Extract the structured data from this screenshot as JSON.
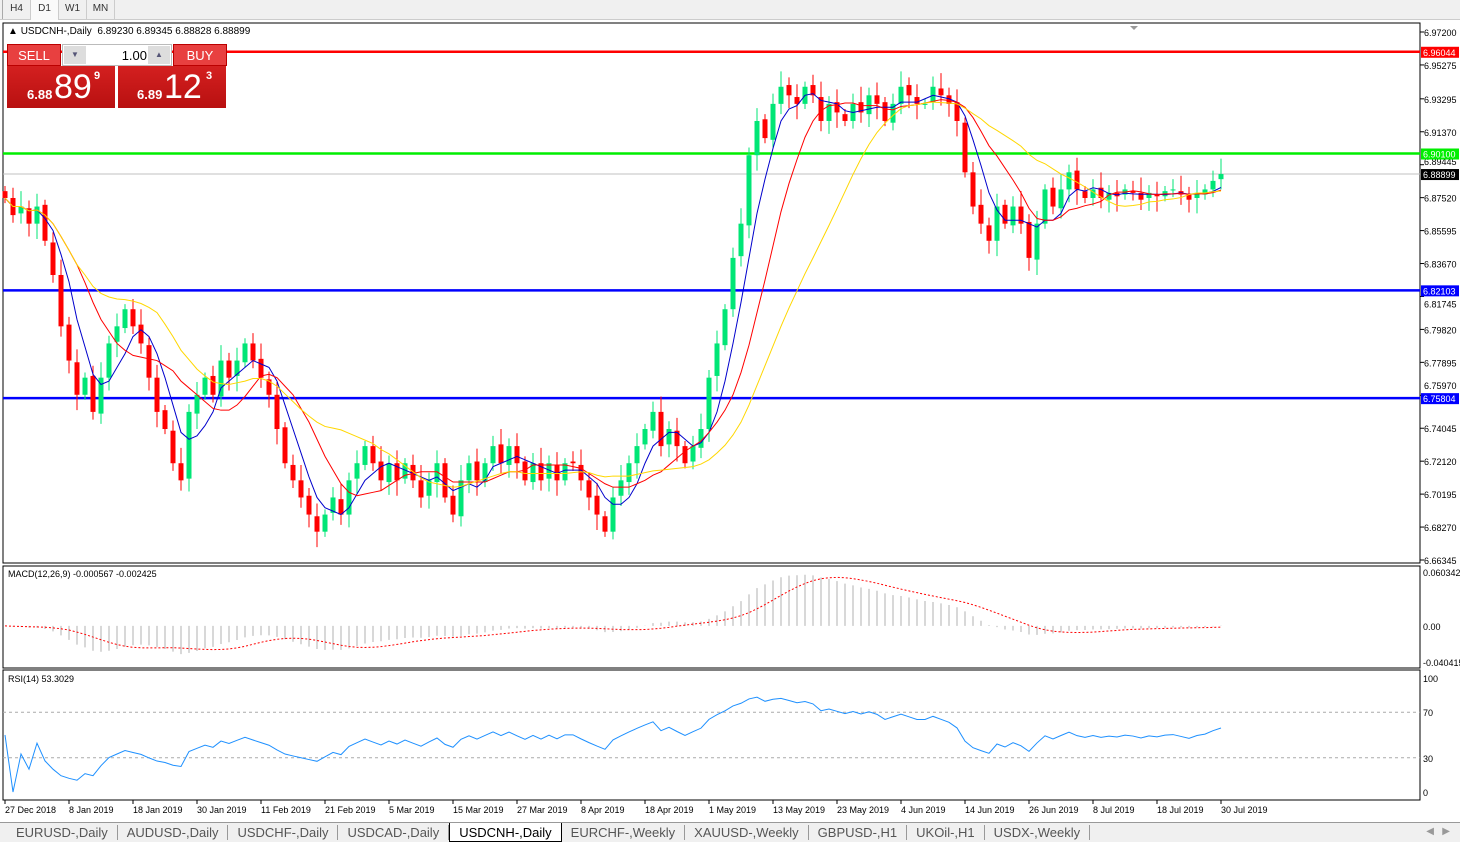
{
  "timeframes": [
    "H4",
    "D1",
    "W1",
    "MN"
  ],
  "active_timeframe": "D1",
  "header": {
    "symbol": "USDCNH-,Daily",
    "ohlc": "6.89230 6.89345 6.88828 6.88899"
  },
  "trade": {
    "sell_label": "SELL",
    "buy_label": "BUY",
    "lot": "1.00",
    "sell_prefix": "6.88",
    "sell_big": "89",
    "sell_sup": "9",
    "buy_prefix": "6.89",
    "buy_big": "12",
    "buy_sup": "3"
  },
  "colors": {
    "bull": "#00e676",
    "bear": "#ff0000",
    "ma5": "#0000cc",
    "ma10": "#ff0000",
    "ma20": "#ffd700",
    "bg": "#ffffff"
  },
  "chart_data": {
    "type": "candlestick",
    "price_ticks": [
      "6.97200",
      "6.95275",
      "6.93295",
      "6.91370",
      "6.89445",
      "6.87520",
      "6.85595",
      "6.83670",
      "6.81745",
      "6.79820",
      "6.77895",
      "6.75970",
      "6.74045",
      "6.72120",
      "6.70195",
      "6.68270",
      "6.66345"
    ],
    "ylim": [
      6.66345,
      6.972
    ],
    "horizontal_lines": [
      {
        "price": 6.96044,
        "label": "6.96044",
        "color": "#ff0000"
      },
      {
        "price": 6.901,
        "label": "6.90100",
        "color": "#00ee00"
      },
      {
        "price": 6.88899,
        "label": "6.88899",
        "color": "#000000",
        "current": true
      },
      {
        "price": 6.82103,
        "label": "6.82103",
        "color": "#0000ff"
      },
      {
        "price": 6.75804,
        "label": "6.75804",
        "color": "#0000ff"
      }
    ],
    "date_labels": [
      "27 Dec 2018",
      "8 Jan 2019",
      "18 Jan 2019",
      "30 Jan 2019",
      "11 Feb 2019",
      "21 Feb 2019",
      "5 Mar 2019",
      "15 Mar 2019",
      "27 Mar 2019",
      "8 Apr 2019",
      "18 Apr 2019",
      "1 May 2019",
      "13 May 2019",
      "23 May 2019",
      "4 Jun 2019",
      "14 Jun 2019",
      "26 Jun 2019",
      "8 Jul 2019",
      "18 Jul 2019",
      "30 Jul 2019"
    ],
    "closes": [
      6.875,
      6.865,
      6.87,
      6.86,
      6.87,
      6.85,
      6.83,
      6.8,
      6.78,
      6.76,
      6.77,
      6.75,
      6.77,
      6.79,
      6.8,
      6.81,
      6.8,
      6.79,
      6.77,
      6.75,
      6.74,
      6.72,
      6.71,
      6.75,
      6.76,
      6.77,
      6.76,
      6.78,
      6.77,
      6.78,
      6.79,
      6.78,
      6.77,
      6.76,
      6.74,
      6.72,
      6.71,
      6.7,
      6.69,
      6.68,
      6.69,
      6.7,
      6.69,
      6.71,
      6.72,
      6.73,
      6.72,
      6.71,
      6.72,
      6.71,
      6.72,
      6.71,
      6.7,
      6.71,
      6.72,
      6.7,
      6.69,
      6.71,
      6.72,
      6.71,
      6.72,
      6.73,
      6.72,
      6.73,
      6.72,
      6.71,
      6.72,
      6.71,
      6.72,
      6.71,
      6.72,
      6.72,
      6.71,
      6.7,
      6.69,
      6.68,
      6.7,
      6.71,
      6.72,
      6.73,
      6.74,
      6.75,
      6.73,
      6.74,
      6.73,
      6.72,
      6.73,
      6.74,
      6.77,
      6.79,
      6.81,
      6.84,
      6.86,
      6.9,
      6.92,
      6.91,
      6.93,
      6.94,
      6.935,
      6.93,
      6.94,
      6.935,
      6.92,
      6.93,
      6.925,
      6.92,
      6.93,
      6.925,
      6.935,
      6.93,
      6.92,
      6.93,
      6.94,
      6.935,
      6.93,
      6.93,
      6.94,
      6.935,
      6.93,
      6.92,
      6.89,
      6.87,
      6.86,
      6.85,
      6.87,
      6.86,
      6.87,
      6.86,
      6.84,
      6.86,
      6.88,
      6.87,
      6.88,
      6.89,
      6.88,
      6.875,
      6.88,
      6.875,
      6.878,
      6.876,
      6.88,
      6.878,
      6.874,
      6.878,
      6.876,
      6.879,
      6.88,
      6.877,
      6.874,
      6.878,
      6.88,
      6.885,
      6.88899
    ],
    "moving_averages": [
      5,
      10,
      20
    ],
    "macd": {
      "label": "MACD(12,26,9) -0.000567 -0.002425",
      "ticks": [
        "0.060342",
        "0.00",
        "-0.040415"
      ],
      "ylim": [
        -0.040415,
        0.060342
      ]
    },
    "rsi": {
      "label": "RSI(14) 53.3029",
      "ticks": [
        "100",
        "70",
        "30",
        "0"
      ],
      "levels": [
        70,
        30
      ],
      "ylim": [
        0,
        100
      ]
    }
  },
  "tabs": [
    "EURUSD-,Daily",
    "AUDUSD-,Daily",
    "USDCHF-,Daily",
    "USDCAD-,Daily",
    "USDCNH-,Daily",
    "EURCHF-,Weekly",
    "XAUUSD-,Weekly",
    "GBPUSD-,H1",
    "UKOil-,H1",
    "USDX-,Weekly"
  ],
  "active_tab": "USDCNH-,Daily"
}
